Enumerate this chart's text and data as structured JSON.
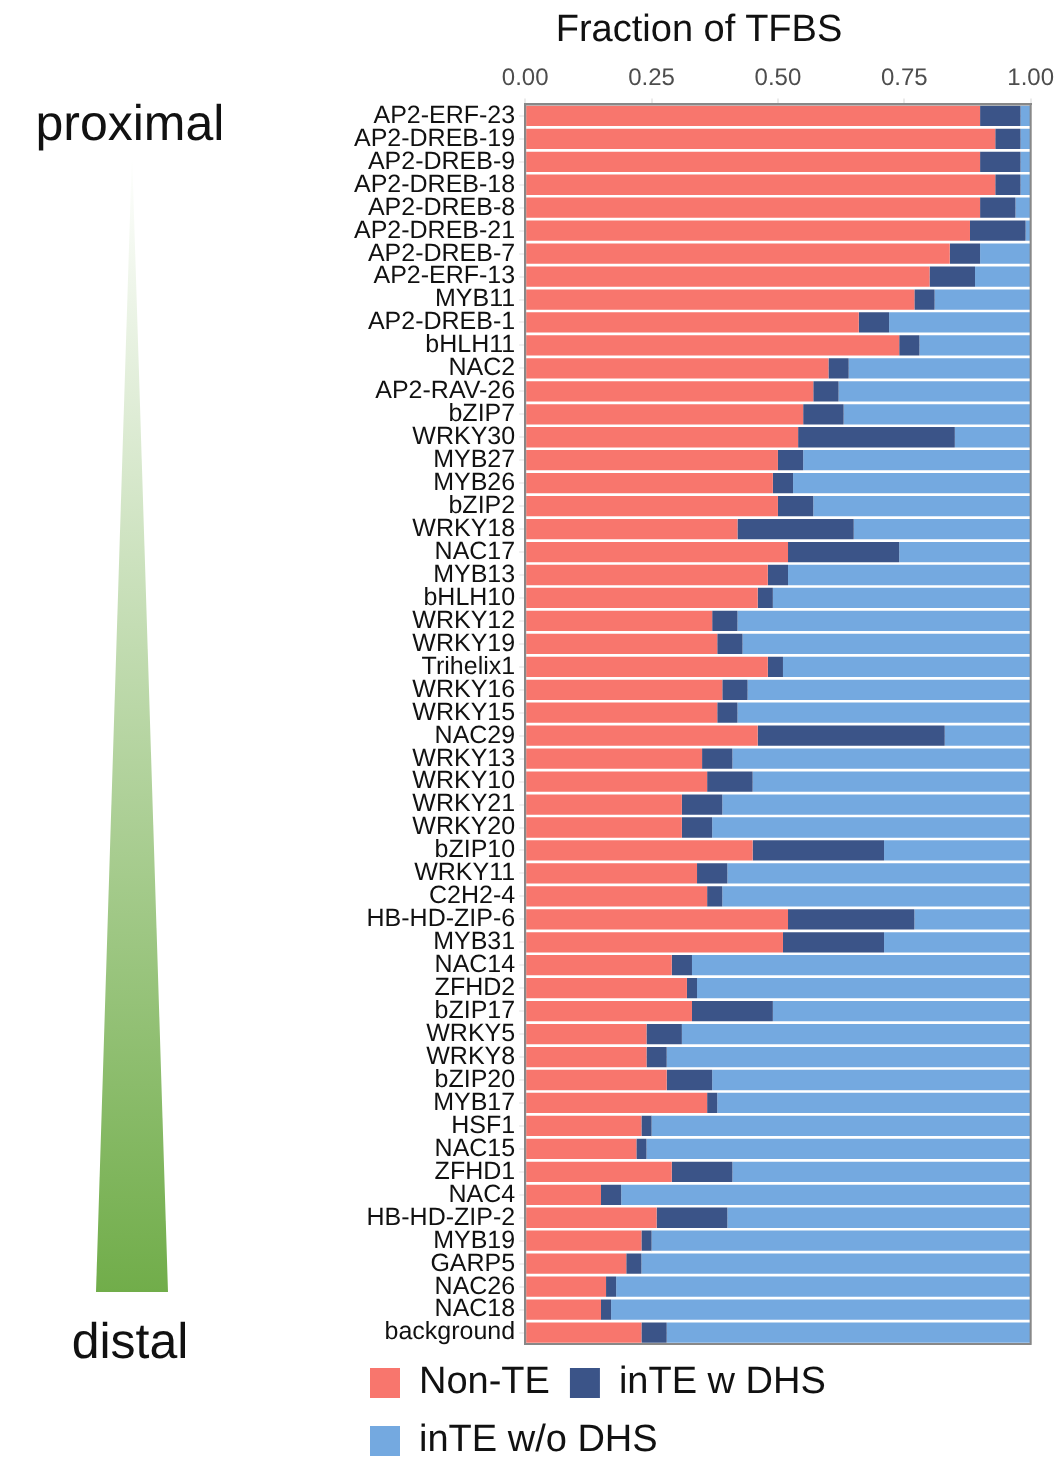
{
  "chart_data": {
    "type": "bar",
    "orientation": "horizontal",
    "stacked": true,
    "title": "Fraction of TFBS",
    "categories": [
      "AP2-ERF-23",
      "AP2-DREB-19",
      "AP2-DREB-9",
      "AP2-DREB-18",
      "AP2-DREB-8",
      "AP2-DREB-21",
      "AP2-DREB-7",
      "AP2-ERF-13",
      "MYB11",
      "AP2-DREB-1",
      "bHLH11",
      "NAC2",
      "AP2-RAV-26",
      "bZIP7",
      "WRKY30",
      "MYB27",
      "MYB26",
      "bZIP2",
      "WRKY18",
      "NAC17",
      "MYB13",
      "bHLH10",
      "WRKY12",
      "WRKY19",
      "Trihelix1",
      "WRKY16",
      "WRKY15",
      "NAC29",
      "WRKY13",
      "WRKY10",
      "WRKY21",
      "WRKY20",
      "bZIP10",
      "WRKY11",
      "C2H2-4",
      "HB-HD-ZIP-6",
      "MYB31",
      "NAC14",
      "ZFHD2",
      "bZIP17",
      "WRKY5",
      "WRKY8",
      "bZIP20",
      "MYB17",
      "HSF1",
      "NAC15",
      "ZFHD1",
      "NAC4",
      "HB-HD-ZIP-2",
      "MYB19",
      "GARP5",
      "NAC26",
      "NAC18",
      "background"
    ],
    "series": [
      {
        "name": "Non-TE",
        "color": "#f8766d",
        "values": [
          0.9,
          0.93,
          0.9,
          0.93,
          0.9,
          0.88,
          0.84,
          0.8,
          0.77,
          0.66,
          0.74,
          0.6,
          0.57,
          0.55,
          0.54,
          0.5,
          0.49,
          0.5,
          0.42,
          0.52,
          0.48,
          0.46,
          0.37,
          0.38,
          0.48,
          0.39,
          0.38,
          0.46,
          0.35,
          0.36,
          0.31,
          0.31,
          0.45,
          0.34,
          0.36,
          0.52,
          0.51,
          0.29,
          0.32,
          0.33,
          0.24,
          0.24,
          0.28,
          0.36,
          0.23,
          0.22,
          0.29,
          0.15,
          0.26,
          0.23,
          0.2,
          0.16,
          0.15,
          0.23
        ]
      },
      {
        "name": "inTE w DHS",
        "color": "#3b5488",
        "values": [
          0.08,
          0.05,
          0.08,
          0.05,
          0.07,
          0.11,
          0.06,
          0.09,
          0.04,
          0.06,
          0.04,
          0.04,
          0.05,
          0.08,
          0.31,
          0.05,
          0.04,
          0.07,
          0.23,
          0.22,
          0.04,
          0.03,
          0.05,
          0.05,
          0.03,
          0.05,
          0.04,
          0.37,
          0.06,
          0.09,
          0.08,
          0.06,
          0.26,
          0.06,
          0.03,
          0.25,
          0.2,
          0.04,
          0.02,
          0.16,
          0.07,
          0.04,
          0.09,
          0.02,
          0.02,
          0.02,
          0.12,
          0.04,
          0.14,
          0.02,
          0.03,
          0.02,
          0.02,
          0.05
        ]
      },
      {
        "name": "inTE w/o DHS",
        "color": "#74a9e0",
        "values": [
          0.02,
          0.02,
          0.02,
          0.02,
          0.03,
          0.01,
          0.1,
          0.11,
          0.19,
          0.28,
          0.22,
          0.36,
          0.38,
          0.37,
          0.15,
          0.45,
          0.47,
          0.43,
          0.35,
          0.26,
          0.48,
          0.51,
          0.58,
          0.57,
          0.49,
          0.56,
          0.58,
          0.17,
          0.59,
          0.55,
          0.61,
          0.63,
          0.29,
          0.6,
          0.61,
          0.23,
          0.29,
          0.67,
          0.66,
          0.51,
          0.69,
          0.72,
          0.63,
          0.62,
          0.75,
          0.76,
          0.59,
          0.81,
          0.6,
          0.75,
          0.77,
          0.82,
          0.83,
          0.72
        ]
      }
    ],
    "xlim": [
      0,
      1
    ],
    "xticks": [
      {
        "value": 0,
        "label": "0.00"
      },
      {
        "value": 0.25,
        "label": "0.25"
      },
      {
        "value": 0.5,
        "label": "0.50"
      },
      {
        "value": 0.75,
        "label": "0.75"
      },
      {
        "value": 1,
        "label": "1.00"
      }
    ],
    "grid": true,
    "legend": "bottom",
    "annotations": [
      "proximal",
      "distal"
    ]
  }
}
